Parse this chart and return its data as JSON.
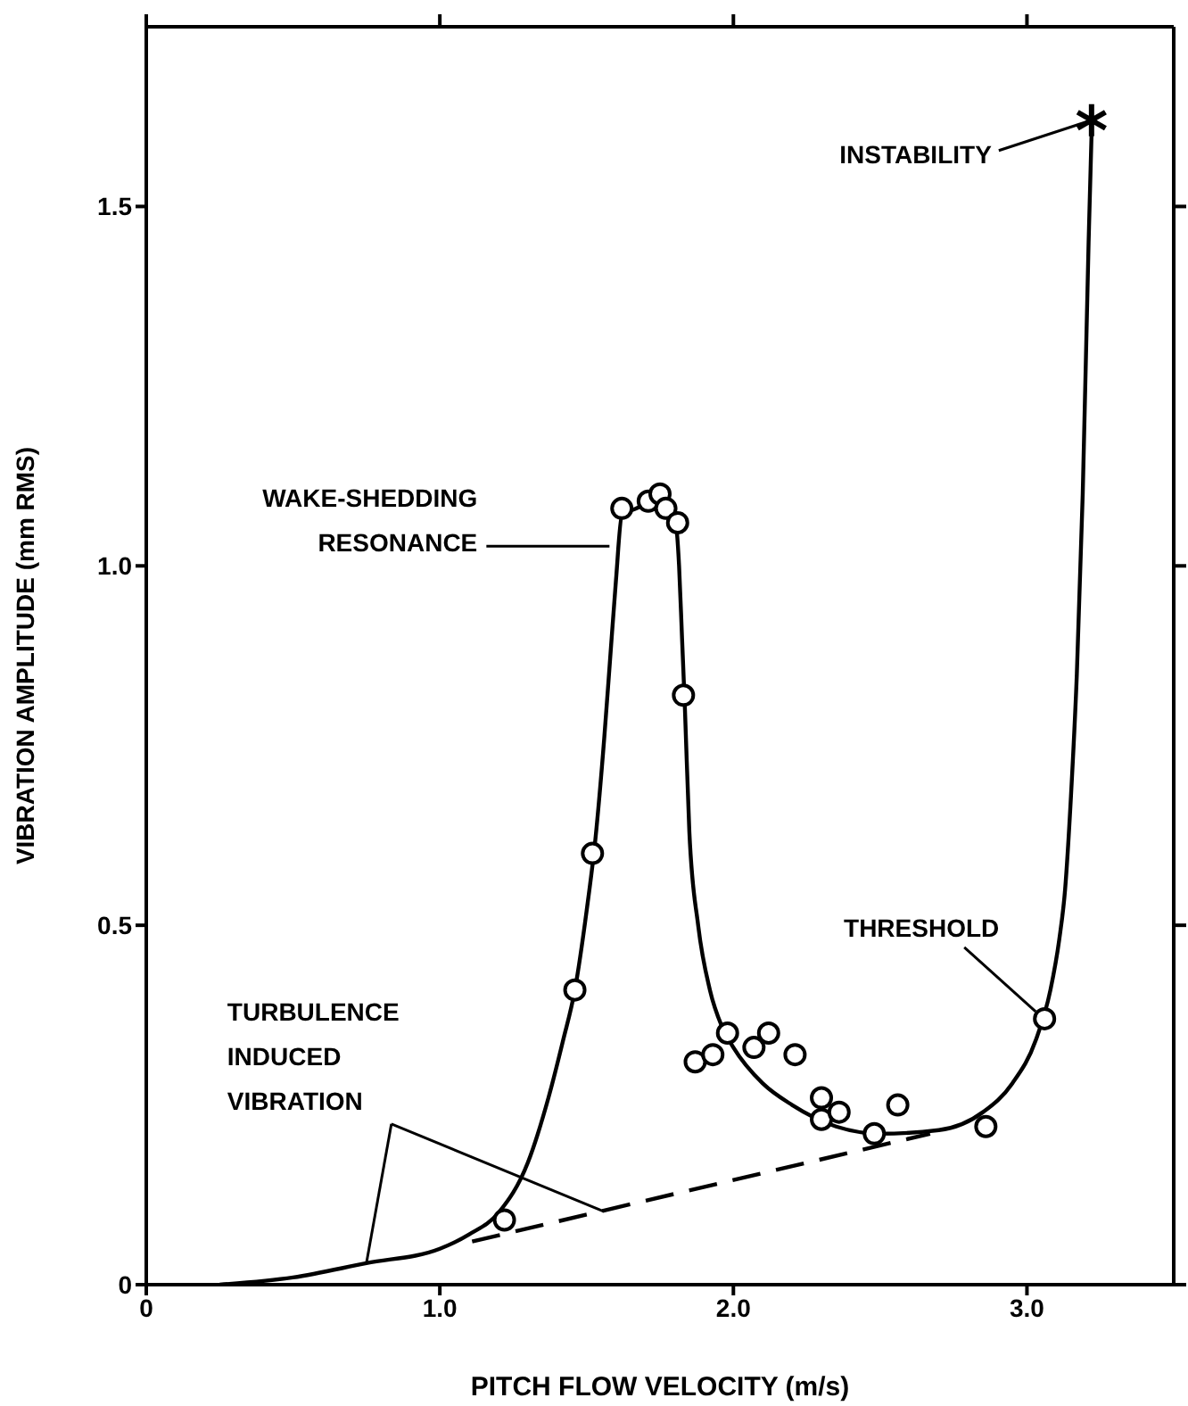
{
  "chart_data": {
    "type": "scatter",
    "xlabel": "PITCH FLOW VELOCITY (m/s)",
    "ylabel": "VIBRATION AMPLITUDE (mm RMS)",
    "xlim": [
      0,
      3.5
    ],
    "xticks": [
      0,
      {
        "value": 1,
        "label": "1.0"
      },
      {
        "value": 2,
        "label": "2.0"
      },
      {
        "value": 3,
        "label": "3.0"
      }
    ],
    "ylim": [
      0,
      1.75
    ],
    "yticks": [
      0,
      0.5,
      {
        "value": 1,
        "label": "1.0"
      },
      1.5
    ],
    "series": [
      {
        "marker": "circle",
        "color": "#000000",
        "x": [
          1.22,
          1.46,
          1.52,
          1.62,
          1.71,
          1.75,
          1.77,
          1.81,
          1.83,
          1.87,
          1.93,
          1.98,
          2.07,
          2.12,
          2.21,
          2.3,
          2.3,
          2.36,
          2.48,
          2.56,
          2.86,
          3.06
        ],
        "values": [
          0.09,
          0.41,
          0.6,
          1.08,
          1.09,
          1.1,
          1.08,
          1.06,
          0.82,
          0.31,
          0.32,
          0.35,
          0.33,
          0.35,
          0.32,
          0.26,
          0.23,
          0.24,
          0.21,
          0.25,
          0.22,
          0.37
        ]
      },
      {
        "marker": "cross",
        "color": "#000000",
        "x": [
          3.22
        ],
        "values": [
          1.62
        ]
      },
      {
        "type": "line",
        "marker": "none",
        "line_style": "solid",
        "color": "#000000",
        "x": [
          0.25,
          0.5,
          0.75,
          1.0,
          1.1,
          1.2,
          1.3,
          1.37,
          1.42,
          1.46,
          1.5,
          1.53,
          1.56,
          1.58,
          1.6,
          1.62,
          1.67,
          1.72,
          1.77,
          1.8,
          1.815,
          1.825,
          1.835,
          1.85,
          1.88,
          1.92,
          1.96,
          2.0,
          2.1,
          2.2,
          2.35,
          2.5,
          2.7,
          2.85,
          2.95,
          3.03,
          3.08,
          3.11,
          3.13,
          3.15,
          3.17,
          3.19,
          3.21,
          3.22
        ],
        "values": [
          0,
          0.01,
          0.03,
          0.05,
          0.07,
          0.1,
          0.17,
          0.26,
          0.34,
          0.41,
          0.52,
          0.62,
          0.76,
          0.87,
          0.98,
          1.07,
          1.08,
          1.09,
          1.09,
          1.07,
          1.0,
          0.9,
          0.8,
          0.63,
          0.5,
          0.41,
          0.36,
          0.33,
          0.28,
          0.25,
          0.22,
          0.21,
          0.215,
          0.24,
          0.28,
          0.34,
          0.41,
          0.48,
          0.55,
          0.68,
          0.85,
          1.1,
          1.45,
          1.6
        ]
      },
      {
        "type": "line",
        "marker": "none",
        "line_style": "dashed",
        "color": "#000000",
        "x": [
          1.11,
          2.67
        ],
        "values": [
          0.06,
          0.21
        ]
      }
    ],
    "annotations": [
      {
        "text": "WAKE-SHEDDING\nRESONANCE",
        "x": 1.59,
        "y": 1.02
      },
      {
        "text": "INSTABILITY",
        "x": 3.22,
        "y": 1.62
      },
      {
        "text": "THRESHOLD",
        "x": 3.06,
        "y": 0.37
      },
      {
        "text": "TURBULENCE\nINDUCED\nVIBRATION",
        "x": 0.75,
        "y": 0.03
      }
    ]
  }
}
